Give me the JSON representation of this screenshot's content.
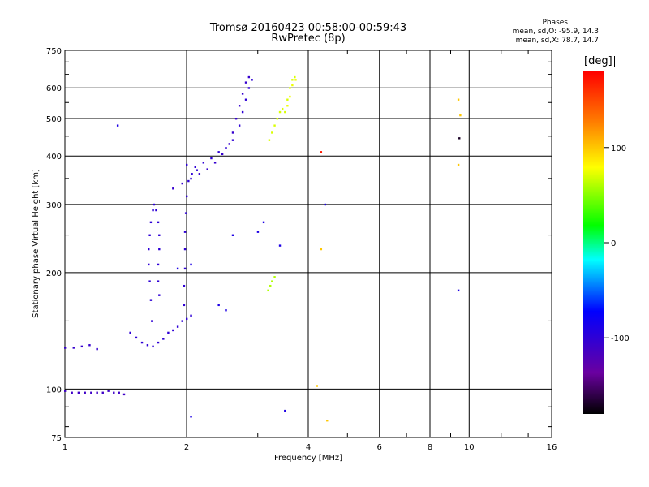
{
  "header": {
    "title_line1": "Tromsø 20160423 00:58:00-00:59:43",
    "title_line2": "RwPretec (8p)",
    "stats_title": "Phases",
    "stats_o": "mean, sd,O: -95.9, 14.3",
    "stats_x": "mean, sd,X:  78.7, 14.7"
  },
  "colorbar": {
    "label": "[deg]",
    "ticks": [
      "100",
      "0",
      "-100"
    ],
    "tick_values": [
      100,
      0,
      -100
    ],
    "range": [
      -180,
      180
    ]
  },
  "chart_data": {
    "type": "scatter",
    "xlabel": "Frequency [MHz]",
    "ylabel": "Stationary phase Virtual Height [km]",
    "xscale": "log",
    "yscale": "log",
    "xlim": [
      1,
      16
    ],
    "ylim": [
      75,
      750
    ],
    "xticks": [
      1,
      2,
      4,
      6,
      8,
      10,
      16
    ],
    "xtick_labels": [
      "1",
      "2",
      "4",
      "6",
      "8",
      "10",
      "16"
    ],
    "yticks": [
      75,
      100,
      200,
      300,
      400,
      500,
      600,
      750
    ],
    "ytick_labels": [
      "75",
      "100",
      "200",
      "300",
      "400",
      "500",
      "600",
      "750"
    ],
    "grid": true,
    "traces": [
      {
        "phase": -110,
        "points": [
          [
            1.0,
            99
          ],
          [
            1.04,
            98
          ],
          [
            1.08,
            98
          ],
          [
            1.12,
            98
          ],
          [
            1.16,
            98
          ],
          [
            1.2,
            98
          ],
          [
            1.24,
            98
          ],
          [
            1.28,
            99
          ],
          [
            1.32,
            98
          ],
          [
            1.36,
            98
          ],
          [
            1.4,
            97
          ]
        ]
      },
      {
        "phase": -105,
        "points": [
          [
            1.0,
            128
          ],
          [
            1.05,
            128
          ],
          [
            1.1,
            129
          ],
          [
            1.15,
            130
          ],
          [
            1.2,
            127
          ]
        ]
      },
      {
        "phase": -100,
        "points": [
          [
            1.45,
            140
          ],
          [
            1.5,
            136
          ],
          [
            1.55,
            132
          ],
          [
            1.6,
            130
          ],
          [
            1.65,
            129
          ],
          [
            1.7,
            132
          ],
          [
            1.75,
            135
          ],
          [
            1.8,
            140
          ],
          [
            1.85,
            142
          ],
          [
            1.9,
            145
          ],
          [
            1.95,
            150
          ],
          [
            2.0,
            152
          ],
          [
            2.05,
            155
          ]
        ]
      },
      {
        "phase": -100,
        "points": [
          [
            1.64,
            150
          ],
          [
            1.63,
            170
          ],
          [
            1.62,
            190
          ],
          [
            1.61,
            210
          ],
          [
            1.61,
            230
          ],
          [
            1.62,
            250
          ],
          [
            1.63,
            270
          ],
          [
            1.65,
            290
          ],
          [
            1.66,
            300
          ],
          [
            1.68,
            290
          ],
          [
            1.7,
            270
          ],
          [
            1.71,
            250
          ],
          [
            1.71,
            230
          ],
          [
            1.7,
            210
          ],
          [
            1.7,
            190
          ],
          [
            1.71,
            175
          ]
        ]
      },
      {
        "phase": -100,
        "points": [
          [
            1.97,
            165
          ],
          [
            1.97,
            185
          ],
          [
            1.98,
            205
          ],
          [
            1.98,
            230
          ],
          [
            1.98,
            255
          ],
          [
            1.99,
            285
          ],
          [
            2.0,
            315
          ],
          [
            2.02,
            345
          ],
          [
            2.06,
            360
          ],
          [
            2.12,
            368
          ]
        ]
      },
      {
        "phase": -105,
        "points": [
          [
            1.85,
            330
          ],
          [
            1.95,
            340
          ],
          [
            2.05,
            350
          ],
          [
            2.15,
            360
          ],
          [
            2.25,
            370
          ],
          [
            2.35,
            385
          ],
          [
            2.45,
            405
          ],
          [
            2.55,
            430
          ],
          [
            2.6,
            460
          ],
          [
            2.65,
            500
          ],
          [
            2.7,
            540
          ],
          [
            2.75,
            580
          ],
          [
            2.8,
            620
          ],
          [
            2.85,
            640
          ]
        ]
      },
      {
        "phase": -100,
        "points": [
          [
            2.0,
            380
          ],
          [
            2.1,
            375
          ],
          [
            2.2,
            385
          ],
          [
            2.3,
            395
          ],
          [
            2.4,
            410
          ],
          [
            2.5,
            420
          ],
          [
            2.6,
            440
          ],
          [
            2.7,
            480
          ],
          [
            2.75,
            520
          ],
          [
            2.8,
            560
          ],
          [
            2.85,
            600
          ],
          [
            2.9,
            630
          ]
        ]
      },
      {
        "phase": 70,
        "points": [
          [
            3.2,
            440
          ],
          [
            3.25,
            460
          ],
          [
            3.3,
            480
          ],
          [
            3.35,
            500
          ],
          [
            3.4,
            520
          ],
          [
            3.45,
            530
          ],
          [
            3.5,
            520
          ],
          [
            3.55,
            560
          ],
          [
            3.6,
            600
          ],
          [
            3.65,
            630
          ],
          [
            3.7,
            640
          ]
        ]
      },
      {
        "phase": 75,
        "points": [
          [
            3.55,
            540
          ],
          [
            3.6,
            570
          ],
          [
            3.65,
            610
          ],
          [
            3.72,
            630
          ]
        ]
      },
      {
        "phase": 60,
        "points": [
          [
            3.18,
            180
          ],
          [
            3.22,
            185
          ],
          [
            3.25,
            190
          ],
          [
            3.3,
            195
          ]
        ]
      },
      {
        "phase": -90,
        "points": [
          [
            1.35,
            480
          ],
          [
            1.9,
            205
          ],
          [
            2.05,
            210
          ],
          [
            2.4,
            165
          ],
          [
            2.5,
            160
          ],
          [
            2.6,
            250
          ],
          [
            3.0,
            255
          ],
          [
            3.1,
            270
          ],
          [
            3.4,
            235
          ],
          [
            2.05,
            85
          ],
          [
            3.5,
            88
          ],
          [
            4.4,
            300
          ],
          [
            9.4,
            180
          ]
        ]
      },
      {
        "phase": 100,
        "points": [
          [
            4.2,
            102
          ],
          [
            4.3,
            230
          ],
          [
            4.45,
            83
          ],
          [
            9.4,
            560
          ],
          [
            9.5,
            510
          ],
          [
            9.4,
            380
          ]
        ]
      },
      {
        "phase": 170,
        "points": [
          [
            4.3,
            410
          ]
        ]
      },
      {
        "phase": -170,
        "points": [
          [
            9.45,
            445
          ]
        ]
      }
    ]
  }
}
